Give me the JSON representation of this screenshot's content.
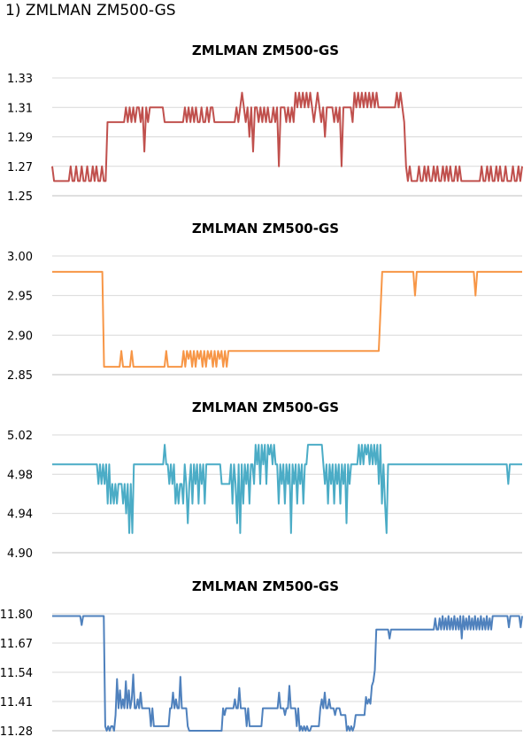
{
  "heading": "1)  ZMLMAN ZM500-GS",
  "chart_data": [
    {
      "type": "line",
      "title": "ZMLMAN ZM500-GS",
      "color": "#c0504d",
      "ylim": [
        1.25,
        1.33
      ],
      "yticks": [
        "1.33",
        "1.31",
        "1.29",
        "1.27",
        "1.25"
      ],
      "values": [
        1.27,
        1.26,
        1.26,
        1.26,
        1.26,
        1.26,
        1.26,
        1.26,
        1.26,
        1.26,
        1.27,
        1.26,
        1.26,
        1.27,
        1.26,
        1.26,
        1.27,
        1.26,
        1.26,
        1.27,
        1.26,
        1.26,
        1.27,
        1.26,
        1.27,
        1.26,
        1.26,
        1.27,
        1.26,
        1.26,
        1.3,
        1.3,
        1.3,
        1.3,
        1.3,
        1.3,
        1.3,
        1.3,
        1.3,
        1.3,
        1.31,
        1.3,
        1.31,
        1.3,
        1.31,
        1.3,
        1.31,
        1.31,
        1.3,
        1.31,
        1.28,
        1.31,
        1.3,
        1.31,
        1.31,
        1.31,
        1.31,
        1.31,
        1.31,
        1.31,
        1.31,
        1.3,
        1.3,
        1.3,
        1.3,
        1.3,
        1.3,
        1.3,
        1.3,
        1.3,
        1.3,
        1.3,
        1.31,
        1.3,
        1.31,
        1.3,
        1.31,
        1.3,
        1.31,
        1.3,
        1.3,
        1.31,
        1.3,
        1.3,
        1.31,
        1.3,
        1.31,
        1.31,
        1.3,
        1.3,
        1.3,
        1.3,
        1.3,
        1.3,
        1.3,
        1.3,
        1.3,
        1.3,
        1.3,
        1.3,
        1.31,
        1.3,
        1.31,
        1.32,
        1.31,
        1.3,
        1.31,
        1.29,
        1.31,
        1.28,
        1.31,
        1.31,
        1.3,
        1.31,
        1.3,
        1.31,
        1.3,
        1.31,
        1.3,
        1.3,
        1.31,
        1.3,
        1.31,
        1.27,
        1.31,
        1.31,
        1.31,
        1.3,
        1.31,
        1.3,
        1.31,
        1.3,
        1.32,
        1.31,
        1.32,
        1.31,
        1.32,
        1.31,
        1.32,
        1.31,
        1.32,
        1.31,
        1.3,
        1.31,
        1.32,
        1.31,
        1.3,
        1.31,
        1.29,
        1.31,
        1.31,
        1.31,
        1.31,
        1.3,
        1.31,
        1.3,
        1.31,
        1.27,
        1.31,
        1.31,
        1.31,
        1.31,
        1.31,
        1.3,
        1.32,
        1.31,
        1.32,
        1.31,
        1.32,
        1.31,
        1.32,
        1.31,
        1.32,
        1.31,
        1.32,
        1.31,
        1.32,
        1.31,
        1.31,
        1.31,
        1.31,
        1.31,
        1.31,
        1.31,
        1.31,
        1.31,
        1.31,
        1.32,
        1.31,
        1.32,
        1.31,
        1.3,
        1.27,
        1.26,
        1.27,
        1.26,
        1.26,
        1.26,
        1.26,
        1.27,
        1.26,
        1.26,
        1.27,
        1.26,
        1.27,
        1.26,
        1.26,
        1.27,
        1.26,
        1.27,
        1.26,
        1.26,
        1.27,
        1.26,
        1.27,
        1.26,
        1.27,
        1.26,
        1.26,
        1.27,
        1.26,
        1.27,
        1.26,
        1.26,
        1.26,
        1.26,
        1.26,
        1.26,
        1.26,
        1.26,
        1.26,
        1.26,
        1.26,
        1.27,
        1.26,
        1.26,
        1.27,
        1.26,
        1.27,
        1.26,
        1.26,
        1.27,
        1.26,
        1.27,
        1.26,
        1.26,
        1.27,
        1.26,
        1.26,
        1.26,
        1.27,
        1.26,
        1.26,
        1.27,
        1.26,
        1.27
      ]
    },
    {
      "type": "line",
      "title": "ZMLMAN ZM500-GS",
      "color": "#f79646",
      "ylim": [
        2.85,
        3.0
      ],
      "yticks": [
        "3.00",
        "2.95",
        "2.90",
        "2.85"
      ],
      "values": [
        2.98,
        2.98,
        2.98,
        2.98,
        2.98,
        2.98,
        2.98,
        2.98,
        2.98,
        2.98,
        2.98,
        2.98,
        2.98,
        2.98,
        2.98,
        2.98,
        2.98,
        2.98,
        2.98,
        2.98,
        2.98,
        2.98,
        2.98,
        2.98,
        2.98,
        2.98,
        2.98,
        2.98,
        2.98,
        2.98,
        2.86,
        2.86,
        2.86,
        2.86,
        2.86,
        2.86,
        2.86,
        2.86,
        2.86,
        2.86,
        2.88,
        2.86,
        2.86,
        2.86,
        2.86,
        2.86,
        2.88,
        2.86,
        2.86,
        2.86,
        2.86,
        2.86,
        2.86,
        2.86,
        2.86,
        2.86,
        2.86,
        2.86,
        2.86,
        2.86,
        2.86,
        2.86,
        2.86,
        2.86,
        2.86,
        2.86,
        2.88,
        2.86,
        2.86,
        2.86,
        2.86,
        2.86,
        2.86,
        2.86,
        2.86,
        2.86,
        2.88,
        2.86,
        2.88,
        2.87,
        2.88,
        2.86,
        2.88,
        2.86,
        2.88,
        2.87,
        2.88,
        2.86,
        2.88,
        2.86,
        2.88,
        2.87,
        2.88,
        2.86,
        2.88,
        2.86,
        2.88,
        2.87,
        2.88,
        2.86,
        2.88,
        2.86,
        2.88,
        2.88,
        2.88,
        2.88,
        2.88,
        2.88,
        2.88,
        2.88,
        2.88,
        2.88,
        2.88,
        2.88,
        2.88,
        2.88,
        2.88,
        2.88,
        2.88,
        2.88,
        2.88,
        2.88,
        2.88,
        2.88,
        2.88,
        2.88,
        2.88,
        2.88,
        2.88,
        2.88,
        2.88,
        2.88,
        2.88,
        2.88,
        2.88,
        2.88,
        2.88,
        2.88,
        2.88,
        2.88,
        2.88,
        2.88,
        2.88,
        2.88,
        2.88,
        2.88,
        2.88,
        2.88,
        2.88,
        2.88,
        2.88,
        2.88,
        2.88,
        2.88,
        2.88,
        2.88,
        2.88,
        2.88,
        2.88,
        2.88,
        2.88,
        2.88,
        2.88,
        2.88,
        2.88,
        2.88,
        2.88,
        2.88,
        2.88,
        2.88,
        2.88,
        2.88,
        2.88,
        2.88,
        2.88,
        2.88,
        2.88,
        2.88,
        2.88,
        2.88,
        2.88,
        2.88,
        2.88,
        2.88,
        2.88,
        2.88,
        2.88,
        2.88,
        2.88,
        2.88,
        2.93,
        2.98,
        2.98,
        2.98,
        2.98,
        2.98,
        2.98,
        2.98,
        2.98,
        2.98,
        2.98,
        2.98,
        2.98,
        2.98,
        2.98,
        2.98,
        2.98,
        2.98,
        2.98,
        2.98,
        2.95,
        2.98,
        2.98,
        2.98,
        2.98,
        2.98,
        2.98,
        2.98,
        2.98,
        2.98,
        2.98,
        2.98,
        2.98,
        2.98,
        2.98,
        2.98,
        2.98,
        2.98,
        2.98,
        2.98,
        2.98,
        2.98,
        2.98,
        2.98,
        2.98,
        2.98,
        2.98,
        2.98,
        2.98,
        2.98,
        2.98,
        2.98,
        2.98,
        2.98,
        2.98,
        2.95,
        2.98,
        2.98,
        2.98,
        2.98,
        2.98,
        2.98,
        2.98,
        2.98,
        2.98,
        2.98,
        2.98,
        2.98,
        2.98,
        2.98,
        2.98,
        2.98,
        2.98,
        2.98,
        2.98,
        2.98,
        2.98,
        2.98,
        2.98,
        2.98,
        2.98,
        2.98,
        2.98
      ]
    },
    {
      "type": "line",
      "title": "ZMLMAN ZM500-GS",
      "color": "#4bacc6",
      "ylim": [
        4.9,
        5.02
      ],
      "yticks": [
        "5.02",
        "4.98",
        "4.94",
        "4.90"
      ],
      "values": [
        4.99,
        4.99,
        4.99,
        4.99,
        4.99,
        4.99,
        4.99,
        4.99,
        4.99,
        4.99,
        4.99,
        4.99,
        4.99,
        4.99,
        4.99,
        4.99,
        4.99,
        4.99,
        4.99,
        4.99,
        4.99,
        4.99,
        4.99,
        4.99,
        4.99,
        4.99,
        4.99,
        4.99,
        4.99,
        4.99,
        4.97,
        4.99,
        4.97,
        4.99,
        4.97,
        4.99,
        4.95,
        4.99,
        4.95,
        4.97,
        4.95,
        4.97,
        4.95,
        4.97,
        4.97,
        4.97,
        4.95,
        4.97,
        4.94,
        4.97,
        4.92,
        4.97,
        4.92,
        4.99,
        4.99,
        4.99,
        4.99,
        4.99,
        4.99,
        4.99,
        4.99,
        4.99,
        4.99,
        4.99,
        4.99,
        4.99,
        4.99,
        4.99,
        4.99,
        4.99,
        4.99,
        4.99,
        4.99,
        5.01,
        4.99,
        4.99,
        4.97,
        4.99,
        4.97,
        4.99,
        4.95,
        4.97,
        4.95,
        4.97,
        4.97,
        4.95,
        4.99,
        4.97,
        4.93,
        4.97,
        4.99,
        4.95,
        4.99,
        4.97,
        4.99,
        4.95,
        4.99,
        4.97,
        4.99,
        4.95,
        4.99,
        4.99,
        4.99,
        4.99,
        4.99,
        4.99,
        4.99,
        4.99,
        4.99,
        4.99,
        4.97,
        4.97,
        4.97,
        4.97,
        4.97,
        4.97,
        4.99,
        4.95,
        4.99,
        4.97,
        4.93,
        4.99,
        4.92,
        4.99,
        4.95,
        4.99,
        4.97,
        4.99,
        4.95,
        4.99,
        4.99,
        4.97,
        5.01,
        4.99,
        5.01,
        4.97,
        5.01,
        4.99,
        5.01,
        4.97,
        5.01,
        5.0,
        5.01,
        4.99,
        5.01,
        4.99,
        4.99,
        4.95,
        4.99,
        4.97,
        4.99,
        4.95,
        4.99,
        4.97,
        4.99,
        4.92,
        4.99,
        4.97,
        4.99,
        4.95,
        4.99,
        4.97,
        4.99,
        4.95,
        4.99,
        4.99,
        5.01,
        5.01,
        5.01,
        5.01,
        5.01,
        5.01,
        5.01,
        5.01,
        5.01,
        5.01,
        4.99,
        4.97,
        4.99,
        4.95,
        4.99,
        4.97,
        4.99,
        4.95,
        4.99,
        4.97,
        4.99,
        4.95,
        4.99,
        4.97,
        4.99,
        4.93,
        4.99,
        4.97,
        4.99,
        4.99,
        4.99,
        4.99,
        4.99,
        5.01,
        4.99,
        5.01,
        4.99,
        5.01,
        5.0,
        5.01,
        4.99,
        5.01,
        4.99,
        5.01,
        4.99,
        5.01,
        4.97,
        5.01,
        4.95,
        4.99,
        4.95,
        4.92,
        4.99,
        4.99,
        4.99,
        4.99,
        4.99,
        4.99,
        4.99,
        4.99,
        4.99,
        4.99,
        4.99,
        4.99,
        4.99,
        4.99,
        4.99,
        4.99,
        4.99,
        4.99,
        4.99,
        4.99,
        4.99,
        4.99,
        4.99,
        4.99,
        4.99,
        4.99,
        4.99,
        4.99,
        4.99,
        4.99,
        4.99,
        4.99,
        4.99,
        4.99,
        4.99,
        4.99,
        4.99,
        4.99,
        4.99,
        4.99,
        4.99,
        4.99,
        4.99,
        4.99,
        4.99,
        4.99,
        4.99,
        4.99,
        4.99,
        4.99,
        4.99,
        4.99,
        4.99,
        4.99,
        4.99,
        4.99,
        4.99,
        4.99,
        4.99,
        4.99,
        4.99,
        4.99,
        4.99,
        4.99,
        4.99,
        4.99,
        4.99,
        4.99,
        4.99,
        4.99,
        4.99,
        4.99,
        4.99,
        4.99,
        4.99,
        4.99,
        4.99,
        4.99,
        4.97,
        4.99,
        4.99,
        4.99,
        4.99,
        4.99,
        4.99,
        4.99,
        4.99,
        4.99
      ]
    },
    {
      "type": "line",
      "title": "ZMLMAN ZM500-GS",
      "color": "#4f81bd",
      "ylim": [
        11.28,
        11.8
      ],
      "yticks": [
        "11.80",
        "11.67",
        "11.54",
        "11.41",
        "11.28"
      ],
      "values": [
        11.79,
        11.79,
        11.79,
        11.79,
        11.79,
        11.79,
        11.79,
        11.79,
        11.79,
        11.79,
        11.79,
        11.79,
        11.79,
        11.79,
        11.79,
        11.79,
        11.79,
        11.79,
        11.79,
        11.79,
        11.75,
        11.79,
        11.79,
        11.79,
        11.79,
        11.79,
        11.79,
        11.79,
        11.79,
        11.79,
        11.79,
        11.79,
        11.79,
        11.79,
        11.79,
        11.79,
        11.3,
        11.28,
        11.3,
        11.28,
        11.3,
        11.3,
        11.28,
        11.35,
        11.51,
        11.38,
        11.46,
        11.38,
        11.42,
        11.38,
        11.5,
        11.38,
        11.46,
        11.38,
        11.42,
        11.53,
        11.38,
        11.38,
        11.42,
        11.38,
        11.45,
        11.38,
        11.38,
        11.38,
        11.38,
        11.38,
        11.38,
        11.3,
        11.38,
        11.3,
        11.3,
        11.3,
        11.3,
        11.3,
        11.3,
        11.3,
        11.3,
        11.3,
        11.3,
        11.3,
        11.38,
        11.38,
        11.45,
        11.38,
        11.42,
        11.38,
        11.38,
        11.52,
        11.38,
        11.38,
        11.38,
        11.38,
        11.3,
        11.28,
        11.28,
        11.28,
        11.28,
        11.28,
        11.28,
        11.28,
        11.28,
        11.28,
        11.28,
        11.28,
        11.28,
        11.28,
        11.28,
        11.28,
        11.28,
        11.28,
        11.28,
        11.28,
        11.28,
        11.28,
        11.28,
        11.28,
        11.38,
        11.35,
        11.38,
        11.38,
        11.38,
        11.38,
        11.38,
        11.38,
        11.42,
        11.38,
        11.38,
        11.47,
        11.38,
        11.38,
        11.38,
        11.38,
        11.3,
        11.38,
        11.3,
        11.3,
        11.3,
        11.3,
        11.3,
        11.3,
        11.3,
        11.3,
        11.3,
        11.38,
        11.38,
        11.38,
        11.38,
        11.38,
        11.38,
        11.38,
        11.38,
        11.38,
        11.38,
        11.38,
        11.45,
        11.38,
        11.38,
        11.38,
        11.35,
        11.38,
        11.38,
        11.48,
        11.38,
        11.38,
        11.38,
        11.38,
        11.3,
        11.38,
        11.28,
        11.3,
        11.28,
        11.3,
        11.28,
        11.3,
        11.28,
        11.28,
        11.3,
        11.3,
        11.3,
        11.3,
        11.3,
        11.3,
        11.38,
        11.42,
        11.38,
        11.45,
        11.38,
        11.38,
        11.42,
        11.38,
        11.38,
        11.38,
        11.35,
        11.38,
        11.38,
        11.38,
        11.35,
        11.35,
        11.35,
        11.35,
        11.28,
        11.3,
        11.28,
        11.3,
        11.28,
        11.3,
        11.35,
        11.35,
        11.35,
        11.35,
        11.35,
        11.35,
        11.35,
        11.43,
        11.4,
        11.42,
        11.4,
        11.48,
        11.5,
        11.55,
        11.73,
        11.73,
        11.73,
        11.73,
        11.73,
        11.73,
        11.73,
        11.73,
        11.73,
        11.69,
        11.73,
        11.73,
        11.73,
        11.73,
        11.73,
        11.73,
        11.73,
        11.73,
        11.73,
        11.73,
        11.73,
        11.73,
        11.73,
        11.73,
        11.73,
        11.73,
        11.73,
        11.73,
        11.73,
        11.73,
        11.73,
        11.73,
        11.73,
        11.73,
        11.73,
        11.73,
        11.73,
        11.73,
        11.73,
        11.73,
        11.78,
        11.73,
        11.73,
        11.78,
        11.73,
        11.79,
        11.73,
        11.78,
        11.73,
        11.79,
        11.73,
        11.78,
        11.73,
        11.79,
        11.73,
        11.78,
        11.73,
        11.79,
        11.69,
        11.79,
        11.73,
        11.78,
        11.73,
        11.79,
        11.73,
        11.78,
        11.73,
        11.79,
        11.73,
        11.78,
        11.73,
        11.79,
        11.73,
        11.78,
        11.73,
        11.79,
        11.73,
        11.78,
        11.73,
        11.79,
        11.79,
        11.79,
        11.79,
        11.79,
        11.79,
        11.79,
        11.79,
        11.79,
        11.79,
        11.79,
        11.74,
        11.79,
        11.79,
        11.79,
        11.79,
        11.79,
        11.79,
        11.79,
        11.74,
        11.79
      ]
    }
  ]
}
